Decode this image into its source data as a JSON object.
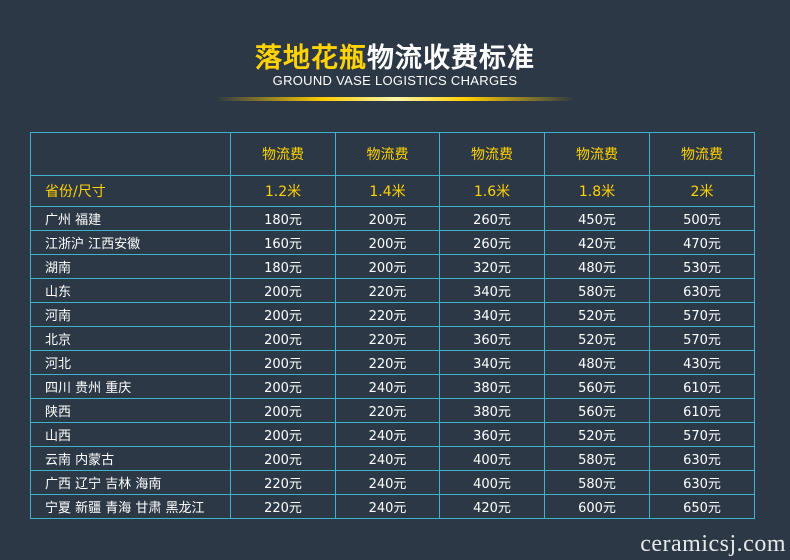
{
  "header": {
    "title_accent": "落地花瓶",
    "title_rest": "物流收费标准",
    "subtitle": "GROUND VASE LOGISTICS CHARGES"
  },
  "table": {
    "fee_header": [
      "物流费",
      "物流费",
      "物流费",
      "物流费",
      "物流费"
    ],
    "size_label": "省份/尺寸",
    "sizes": [
      "1.2米",
      "1.4米",
      "1.6米",
      "1.8米",
      "2米"
    ],
    "rows": [
      {
        "province": "广州 福建",
        "fees": [
          "180元",
          "200元",
          "260元",
          "450元",
          "500元"
        ]
      },
      {
        "province": "江浙沪 江西安徽",
        "fees": [
          "160元",
          "200元",
          "260元",
          "420元",
          "470元"
        ]
      },
      {
        "province": "湖南",
        "fees": [
          "180元",
          "200元",
          "320元",
          "480元",
          "530元"
        ]
      },
      {
        "province": "山东",
        "fees": [
          "200元",
          "220元",
          "340元",
          "580元",
          "630元"
        ]
      },
      {
        "province": "河南",
        "fees": [
          "200元",
          "220元",
          "340元",
          "520元",
          "570元"
        ]
      },
      {
        "province": "北京",
        "fees": [
          "200元",
          "220元",
          "360元",
          "520元",
          "570元"
        ]
      },
      {
        "province": "河北",
        "fees": [
          "200元",
          "220元",
          "340元",
          "480元",
          "430元"
        ]
      },
      {
        "province": "四川 贵州 重庆",
        "fees": [
          "200元",
          "240元",
          "380元",
          "560元",
          "610元"
        ]
      },
      {
        "province": "陕西",
        "fees": [
          "200元",
          "220元",
          "380元",
          "560元",
          "610元"
        ]
      },
      {
        "province": "山西",
        "fees": [
          "200元",
          "240元",
          "360元",
          "520元",
          "570元"
        ]
      },
      {
        "province": "云南 内蒙古",
        "fees": [
          "200元",
          "240元",
          "400元",
          "580元",
          "630元"
        ]
      },
      {
        "province": "广西 辽宁 吉林 海南",
        "fees": [
          "220元",
          "240元",
          "400元",
          "580元",
          "630元"
        ]
      },
      {
        "province": "宁夏 新疆 青海 甘肃 黑龙江",
        "fees": [
          "220元",
          "240元",
          "420元",
          "600元",
          "650元"
        ]
      }
    ]
  },
  "watermark": "ceramicsj.com",
  "colors": {
    "background": "#2c3845",
    "accent": "#ffd200",
    "grid": "#3fb2cc"
  }
}
